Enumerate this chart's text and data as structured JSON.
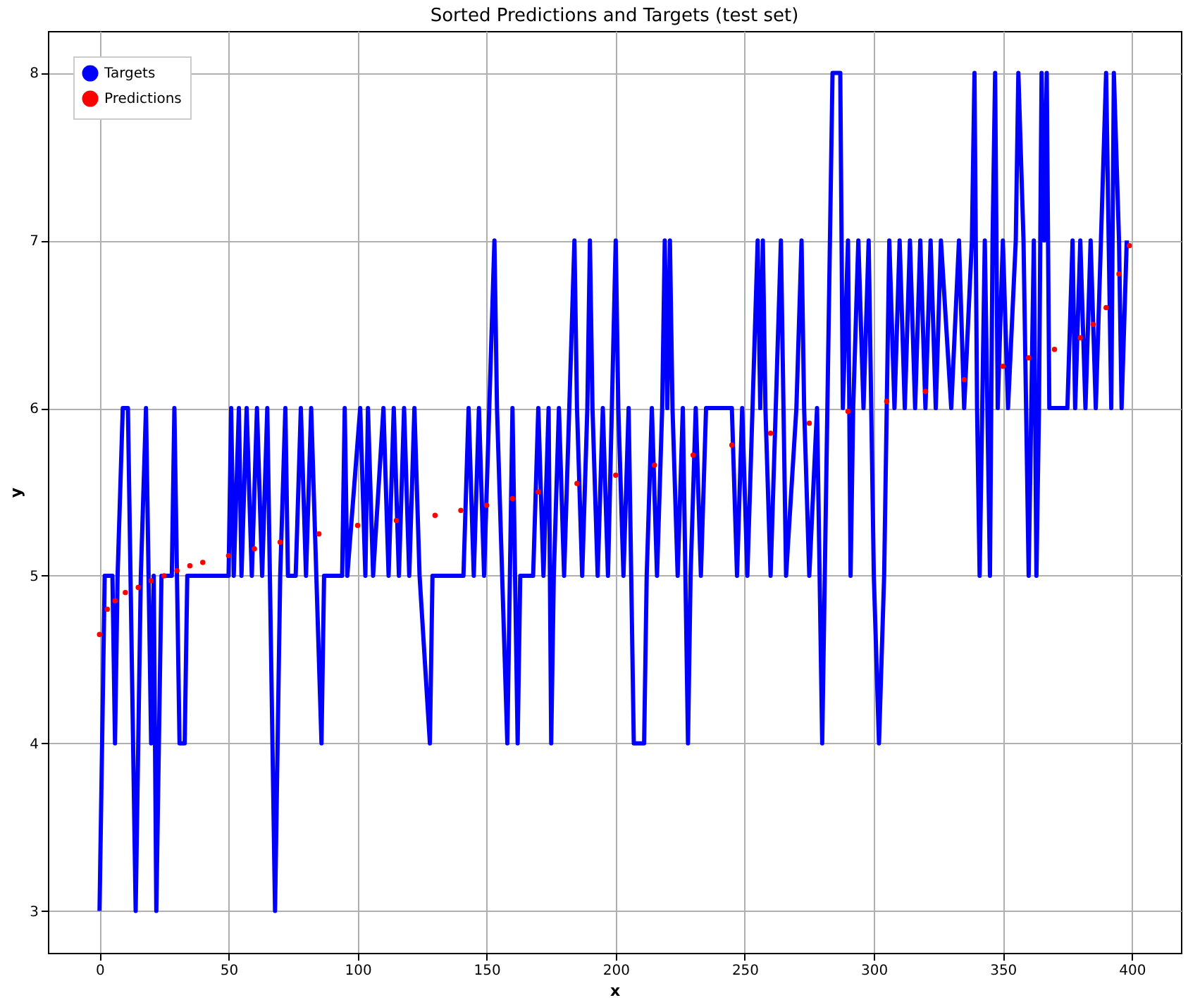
{
  "chart_data": {
    "type": "line",
    "title": "Sorted Predictions and Targets (test set)",
    "xlabel": "x",
    "ylabel": "y",
    "xlim": [
      -20,
      419
    ],
    "ylim": [
      2.75,
      8.25
    ],
    "xticks": [
      0,
      50,
      100,
      150,
      200,
      250,
      300,
      350,
      400
    ],
    "yticks": [
      3,
      4,
      5,
      6,
      7,
      8
    ],
    "grid": true,
    "legend": "top left",
    "series": [
      {
        "name": "Targets",
        "type": "line",
        "marker": "none",
        "line_style": "solid",
        "color": "#0000ff",
        "x": [
          0,
          2,
          5,
          6,
          7,
          9,
          11,
          12,
          14,
          16,
          18,
          19,
          20,
          21,
          22,
          24,
          28,
          29,
          30,
          31,
          33,
          34,
          50,
          51,
          52,
          54,
          55,
          57,
          59,
          61,
          63,
          65,
          66,
          68,
          70,
          72,
          73,
          76,
          78,
          80,
          82,
          84,
          86,
          87,
          94,
          95,
          96,
          101,
          103,
          104,
          106,
          110,
          112,
          114,
          116,
          118,
          120,
          122,
          124,
          128,
          129,
          141,
          143,
          145,
          147,
          149,
          151,
          153,
          154,
          156,
          158,
          159,
          160,
          162,
          163,
          168,
          170,
          172,
          174,
          175,
          176,
          178,
          180,
          182,
          184,
          185,
          187,
          189,
          190,
          191,
          193,
          195,
          197,
          200,
          201,
          203,
          205,
          207,
          211,
          212,
          214,
          216,
          218,
          219,
          220,
          221,
          222,
          224,
          226,
          228,
          229,
          231,
          233,
          235,
          245,
          247,
          249,
          251,
          253,
          255,
          256,
          257,
          258,
          260,
          262,
          264,
          265,
          266,
          270,
          272,
          273,
          275,
          278,
          280,
          282,
          284,
          287,
          288,
          290,
          291,
          292,
          294,
          296,
          298,
          300,
          302,
          304,
          306,
          308,
          310,
          312,
          314,
          316,
          318,
          320,
          322,
          324,
          326,
          330,
          333,
          335,
          338,
          339,
          340,
          341,
          343,
          345,
          346,
          347,
          348,
          350,
          352,
          355,
          356,
          358,
          360,
          362,
          363,
          364,
          365,
          366,
          367,
          368,
          370,
          375,
          377,
          378,
          380,
          382,
          384,
          386,
          388,
          390,
          391,
          392,
          393,
          395,
          396,
          398
        ],
        "values": [
          3,
          5,
          5,
          4,
          5,
          6,
          6,
          5,
          3,
          5,
          6,
          5,
          4,
          5,
          3,
          5,
          5,
          6,
          5,
          4,
          4,
          5,
          5,
          6,
          5,
          6,
          5,
          6,
          5,
          6,
          5,
          6,
          5,
          3,
          5,
          6,
          5,
          5,
          6,
          5,
          6,
          5,
          4,
          5,
          5,
          6,
          5,
          6,
          5,
          6,
          5,
          6,
          5,
          6,
          5,
          6,
          5,
          6,
          5,
          4,
          5,
          5,
          6,
          5,
          6,
          5,
          6,
          7,
          6,
          5,
          4,
          5,
          6,
          4,
          5,
          5,
          6,
          5,
          6,
          4,
          5,
          6,
          5,
          6,
          7,
          6,
          5,
          6,
          7,
          6,
          5,
          6,
          5,
          7,
          6,
          5,
          6,
          4,
          4,
          5,
          6,
          5,
          6,
          7,
          6,
          7,
          6,
          5,
          6,
          4,
          5,
          6,
          5,
          6,
          6,
          5,
          6,
          5,
          6,
          7,
          6,
          7,
          6,
          5,
          6,
          7,
          6,
          5,
          6,
          7,
          6,
          5,
          6,
          4,
          6,
          8,
          8,
          6,
          7,
          5,
          6,
          7,
          6,
          7,
          5,
          4,
          5,
          7,
          6,
          7,
          6,
          7,
          6,
          7,
          6,
          7,
          6,
          7,
          6,
          7,
          6,
          7,
          8,
          6,
          5,
          7,
          5,
          7,
          8,
          6,
          7,
          6,
          7,
          8,
          7,
          5,
          7,
          5,
          6,
          8,
          7,
          8,
          6,
          6,
          6,
          7,
          6,
          7,
          6,
          7,
          6,
          7,
          8,
          7,
          6,
          8,
          7,
          6,
          7
        ]
      },
      {
        "name": "Predictions",
        "type": "scatter",
        "marker": "circle",
        "color": "#ff0000",
        "x": [
          0,
          3,
          6,
          10,
          15,
          20,
          25,
          30,
          35,
          40,
          50,
          60,
          70,
          85,
          100,
          115,
          130,
          140,
          150,
          160,
          170,
          185,
          200,
          215,
          230,
          245,
          260,
          275,
          290,
          305,
          320,
          335,
          350,
          360,
          370,
          380,
          385,
          390,
          395,
          399
        ],
        "values": [
          4.65,
          4.8,
          4.85,
          4.9,
          4.93,
          4.97,
          5.0,
          5.03,
          5.06,
          5.08,
          5.12,
          5.16,
          5.2,
          5.25,
          5.3,
          5.33,
          5.36,
          5.39,
          5.42,
          5.46,
          5.5,
          5.55,
          5.6,
          5.66,
          5.72,
          5.78,
          5.85,
          5.91,
          5.98,
          6.04,
          6.1,
          6.17,
          6.25,
          6.3,
          6.35,
          6.42,
          6.5,
          6.6,
          6.8,
          6.97
        ]
      }
    ]
  }
}
